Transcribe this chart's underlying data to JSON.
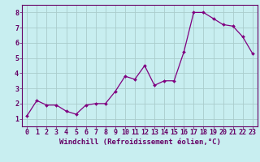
{
  "x": [
    0,
    1,
    2,
    3,
    4,
    5,
    6,
    7,
    8,
    9,
    10,
    11,
    12,
    13,
    14,
    15,
    16,
    17,
    18,
    19,
    20,
    21,
    22,
    23
  ],
  "y": [
    1.2,
    2.2,
    1.9,
    1.9,
    1.5,
    1.3,
    1.9,
    2.0,
    2.0,
    2.8,
    3.8,
    3.6,
    4.5,
    3.2,
    3.5,
    3.5,
    5.4,
    8.0,
    8.0,
    7.6,
    7.2,
    7.1,
    6.4,
    5.3
  ],
  "line_color": "#800080",
  "marker": "D",
  "marker_size": 2.0,
  "bg_color": "#c8eef0",
  "grid_color": "#aacccc",
  "xlabel": "Windchill (Refroidissement éolien,°C)",
  "xlim": [
    -0.5,
    23.5
  ],
  "ylim": [
    0.5,
    8.5
  ],
  "xticks": [
    0,
    1,
    2,
    3,
    4,
    5,
    6,
    7,
    8,
    9,
    10,
    11,
    12,
    13,
    14,
    15,
    16,
    17,
    18,
    19,
    20,
    21,
    22,
    23
  ],
  "yticks": [
    1,
    2,
    3,
    4,
    5,
    6,
    7,
    8
  ],
  "xlabel_fontsize": 6.5,
  "tick_fontsize": 6.0,
  "label_color": "#660066",
  "spine_color": "#660066"
}
